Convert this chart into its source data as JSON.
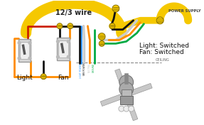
{
  "background_color": "#ffffff",
  "wire_label": "12/3 wire",
  "power_supply_label": "POWER SUPPLY",
  "ceiling_label": "CEILING",
  "light_label": "Light",
  "fan_label": "Fan",
  "status_label1": "Light: Switched",
  "status_label2": "Fan: Switched",
  "wire_colors": {
    "yellow": "#F5C800",
    "black": "#111111",
    "red": "#CC2200",
    "white": "#CCCCCC",
    "blue": "#3399FF",
    "orange": "#FF8C00",
    "green": "#00AA44"
  },
  "figsize": [
    2.87,
    1.76
  ],
  "dpi": 100
}
